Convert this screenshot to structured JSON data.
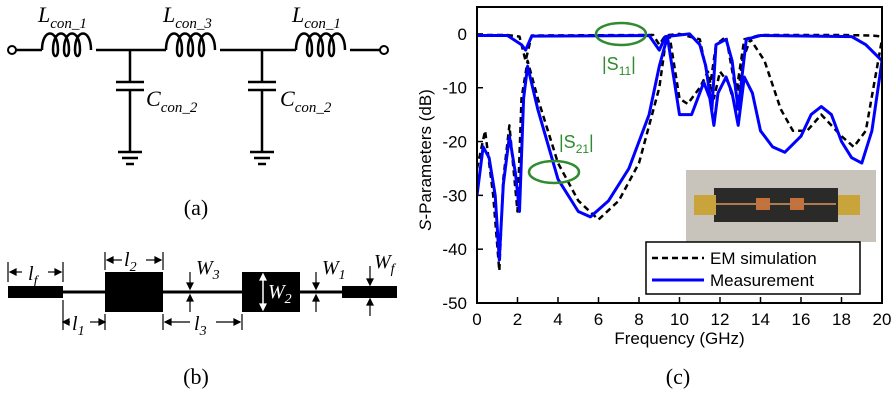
{
  "panel_a": {
    "caption": "(a)",
    "inductors": [
      {
        "base": "L",
        "sub": "con_1"
      },
      {
        "base": "L",
        "sub": "con_3"
      },
      {
        "base": "L",
        "sub": "con_1"
      }
    ],
    "capacitors": [
      {
        "base": "C",
        "sub": "con_2"
      },
      {
        "base": "C",
        "sub": "con_2"
      }
    ]
  },
  "panel_b": {
    "caption": "(b)",
    "dims": [
      {
        "base": "l",
        "sub": "f"
      },
      {
        "base": "l",
        "sub": "2"
      },
      {
        "base": "W",
        "sub": "3"
      },
      {
        "base": "W",
        "sub": "1"
      },
      {
        "base": "W",
        "sub": "f"
      },
      {
        "base": "W",
        "sub": "2"
      },
      {
        "base": "l",
        "sub": "1"
      },
      {
        "base": "l",
        "sub": "3"
      }
    ]
  },
  "panel_c": {
    "caption": "(c)",
    "annotations": [
      {
        "base": "|S",
        "sub": "11",
        "tail": "|",
        "color": "#2e8b2e"
      },
      {
        "base": "|S",
        "sub": "21",
        "tail": "|",
        "color": "#2e8b2e"
      }
    ]
  },
  "chart_data": {
    "type": "line",
    "xlabel": "Frequency (GHz)",
    "ylabel_italic": "S",
    "ylabel_rest": "-Parameters (dB)",
    "xlim": [
      0,
      20
    ],
    "ylim": [
      -50,
      5
    ],
    "xticks": [
      0,
      2,
      4,
      6,
      8,
      10,
      12,
      14,
      16,
      18,
      20
    ],
    "yticks": [
      0,
      -10,
      -20,
      -30,
      -40,
      -50
    ],
    "legend_position": "bottom-right",
    "series": [
      {
        "name": "EM simulation",
        "style": "dashed",
        "color": "#000000",
        "points": [
          [
            0,
            -25
          ],
          [
            0.4,
            -18
          ],
          [
            0.8,
            -30
          ],
          [
            1.1,
            -44
          ],
          [
            1.3,
            -27
          ],
          [
            1.6,
            -17
          ],
          [
            2.0,
            -33
          ],
          [
            2.2,
            -12
          ],
          [
            2.5,
            -5
          ],
          [
            3,
            -12
          ],
          [
            4,
            -24
          ],
          [
            5,
            -31
          ],
          [
            6,
            -34.5
          ],
          [
            7,
            -31
          ],
          [
            8,
            -24
          ],
          [
            9,
            -10
          ],
          [
            9.3,
            -2
          ],
          [
            9.5,
            -0.2
          ],
          [
            10,
            -12
          ],
          [
            10.4,
            -13
          ],
          [
            11,
            -10
          ],
          [
            11.4,
            -7
          ],
          [
            11.7,
            -12
          ],
          [
            12,
            -7
          ],
          [
            12.4,
            -9
          ],
          [
            12.8,
            -14
          ],
          [
            13.1,
            -5
          ],
          [
            13.5,
            -1
          ],
          [
            14.2,
            -5
          ],
          [
            15,
            -14
          ],
          [
            15.6,
            -18
          ],
          [
            16.3,
            -18
          ],
          [
            17,
            -15
          ],
          [
            18,
            -19
          ],
          [
            18.6,
            -21
          ],
          [
            19.2,
            -18
          ],
          [
            20,
            -1
          ]
        ]
      },
      {
        "name": "EM simulation",
        "style": "dashed",
        "color": "#000000",
        "points": [
          [
            0,
            -0.2
          ],
          [
            1.5,
            -0.2
          ],
          [
            2.1,
            -0.5
          ],
          [
            2.4,
            -5
          ],
          [
            2.7,
            -0.3
          ],
          [
            8.7,
            -0.2
          ],
          [
            9,
            -2
          ],
          [
            9.3,
            -0.3
          ],
          [
            10,
            0
          ],
          [
            11,
            -1
          ],
          [
            11.5,
            -10
          ],
          [
            11.8,
            -2
          ],
          [
            12.3,
            -0.5
          ],
          [
            12.8,
            -11
          ],
          [
            13.2,
            -1
          ],
          [
            14,
            -0.2
          ],
          [
            18,
            -0.2
          ],
          [
            19.5,
            -0.3
          ],
          [
            20,
            -0.5
          ]
        ]
      },
      {
        "name": "Measurement",
        "style": "solid",
        "color": "#0000ff",
        "points": [
          [
            0,
            -30
          ],
          [
            0.3,
            -21
          ],
          [
            0.6,
            -23
          ],
          [
            0.9,
            -30
          ],
          [
            1.1,
            -42
          ],
          [
            1.3,
            -28
          ],
          [
            1.6,
            -19
          ],
          [
            1.9,
            -26
          ],
          [
            2.1,
            -33
          ],
          [
            2.3,
            -12
          ],
          [
            2.5,
            -6
          ],
          [
            3,
            -14
          ],
          [
            4,
            -27
          ],
          [
            5,
            -33
          ],
          [
            5.6,
            -34
          ],
          [
            6.5,
            -31
          ],
          [
            7.5,
            -25
          ],
          [
            8.5,
            -15
          ],
          [
            9,
            -6
          ],
          [
            9.4,
            -0.5
          ],
          [
            10,
            -15
          ],
          [
            10.6,
            -15
          ],
          [
            11.2,
            -9
          ],
          [
            11.5,
            -12
          ],
          [
            11.7,
            -17
          ],
          [
            11.9,
            -11
          ],
          [
            12.3,
            -8
          ],
          [
            12.6,
            -11
          ],
          [
            12.9,
            -17
          ],
          [
            13.2,
            -8
          ],
          [
            13.6,
            -11
          ],
          [
            14,
            -18
          ],
          [
            14.6,
            -21
          ],
          [
            15.2,
            -22
          ],
          [
            16,
            -19
          ],
          [
            16.5,
            -15
          ],
          [
            17,
            -13.5
          ],
          [
            17.5,
            -15
          ],
          [
            18,
            -20
          ],
          [
            18.5,
            -23
          ],
          [
            19,
            -24
          ],
          [
            19.5,
            -18
          ],
          [
            20,
            -5
          ]
        ]
      },
      {
        "name": "Measurement",
        "style": "solid",
        "color": "#0000ff",
        "points": [
          [
            0,
            -0.3
          ],
          [
            1.5,
            -0.3
          ],
          [
            2.2,
            -2
          ],
          [
            2.4,
            -3
          ],
          [
            2.7,
            -0.4
          ],
          [
            8.5,
            -0.3
          ],
          [
            9,
            -3
          ],
          [
            9.3,
            -0.5
          ],
          [
            10.5,
            0
          ],
          [
            11,
            -2
          ],
          [
            11.3,
            -6
          ],
          [
            11.6,
            -14
          ],
          [
            11.8,
            -2
          ],
          [
            12.3,
            -1
          ],
          [
            12.6,
            -5
          ],
          [
            12.9,
            -14
          ],
          [
            13.3,
            -1
          ],
          [
            14,
            -0.3
          ],
          [
            18.5,
            -0.5
          ],
          [
            19.2,
            -2
          ],
          [
            20,
            -5
          ]
        ]
      }
    ]
  },
  "colors": {
    "measurement": "#0000ff",
    "simulation": "#000000",
    "annotation": "#2e8b2e"
  }
}
